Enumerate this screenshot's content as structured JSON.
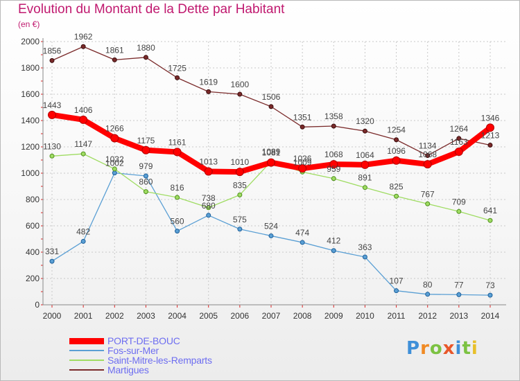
{
  "header": {
    "title": "Evolution du Montant de la Dette par Habitant",
    "subtitle": "(en €)"
  },
  "logo": {
    "letters": [
      "P",
      "r",
      "o",
      "x",
      "i",
      "t",
      "i"
    ],
    "colors": [
      "#3e8fd8",
      "#f08a24",
      "#7cc242",
      "#e8572a",
      "#3e8fd8",
      "#7cc242",
      "#e8c02a"
    ]
  },
  "colors": {
    "title": "#c0196f",
    "grid": "#c8c8c8",
    "legend_text": "#6d6df0"
  },
  "chart_data": {
    "type": "line",
    "title": "Evolution du Montant de la Dette par Habitant",
    "ylabel": "(en €)",
    "xlabel": "",
    "x": [
      "2000",
      "2001",
      "2002",
      "2003",
      "2004",
      "2005",
      "2006",
      "2007",
      "2008",
      "2009",
      "2010",
      "2011",
      "2012",
      "2013",
      "2014"
    ],
    "ylim": [
      0,
      2000
    ],
    "yticks": [
      0,
      200,
      400,
      600,
      800,
      1000,
      1200,
      1400,
      1600,
      1800,
      2000
    ],
    "grid": true,
    "legend_position": "bottom",
    "series": [
      {
        "name": "PORT-DE-BOUC",
        "color": "#ff0000",
        "values": [
          1443,
          1406,
          1266,
          1175,
          1161,
          1013,
          1010,
          1081,
          1036,
          1068,
          1064,
          1096,
          1068,
          1163,
          1346
        ],
        "labels": [
          "1443",
          "1406",
          "1266",
          "1175",
          "1161",
          "1013",
          "1010",
          "1081",
          "1036",
          "1068",
          "1064",
          "1096",
          "1068",
          "1163",
          "1346"
        ]
      },
      {
        "name": "Fos-sur-Mer",
        "color": "#5a9fd4",
        "values": [
          331,
          482,
          1002,
          979,
          560,
          680,
          575,
          524,
          474,
          412,
          363,
          107,
          80,
          77,
          73
        ],
        "labels": [
          "331",
          "482",
          "1002",
          "979",
          "560",
          "680",
          "575",
          "524",
          "474",
          "412",
          "363",
          "107",
          "80",
          "77",
          "73"
        ]
      },
      {
        "name": "Saint-Mitre-les-Remparts",
        "color": "#9fdc62",
        "values": [
          1130,
          1147,
          1032,
          860,
          816,
          738,
          835,
          1089,
          1009,
          959,
          891,
          825,
          767,
          709,
          641
        ],
        "labels": [
          "1130",
          "1147",
          "1032",
          "860",
          "816",
          "738",
          "835",
          "1089",
          "1009",
          "959",
          "891",
          "825",
          "767",
          "709",
          "641"
        ]
      },
      {
        "name": "Martigues",
        "color": "#7a2a2a",
        "values": [
          1856,
          1962,
          1861,
          1880,
          1725,
          1619,
          1600,
          1506,
          1351,
          1358,
          1320,
          1254,
          1134,
          1264,
          1213
        ],
        "labels": [
          "1856",
          "1962",
          "1861",
          "1880",
          "1725",
          "1619",
          "1600",
          "1506",
          "1351",
          "1358",
          "1320",
          "1254",
          "1134",
          "1264",
          "1213"
        ]
      }
    ]
  }
}
